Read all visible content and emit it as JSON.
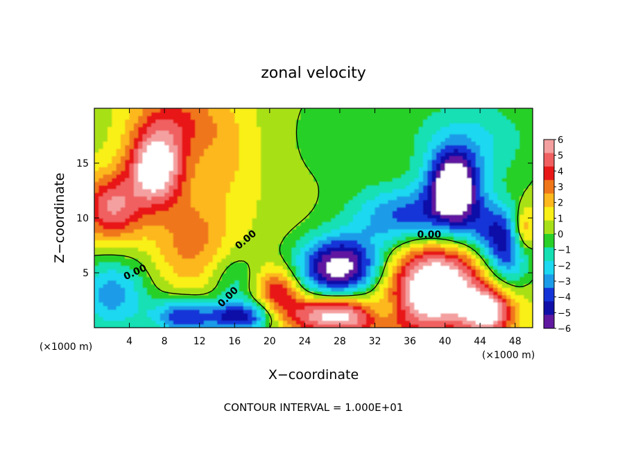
{
  "chart_data": {
    "type": "heatmap",
    "title": "zonal velocity",
    "xlabel": "X−coordinate",
    "ylabel": "Z−coordinate",
    "x_unit_left": "(×1000 m)",
    "x_unit_right": "(×1000 m)",
    "xlim": [
      0,
      50
    ],
    "ylim": [
      0,
      20
    ],
    "x_ticks": [
      4,
      8,
      12,
      16,
      20,
      24,
      28,
      32,
      36,
      40,
      44,
      48
    ],
    "y_ticks": [
      5,
      10,
      15
    ],
    "colorbar": {
      "levels": [
        6,
        5,
        4,
        3,
        2,
        1,
        0,
        -1,
        -2,
        -3,
        -4,
        -5,
        -6
      ],
      "tick_labels": [
        "6",
        "5",
        "4",
        "3",
        "2",
        "1",
        "0",
        "−1",
        "−2",
        "−3",
        "−4",
        "−5",
        "−6"
      ],
      "colors": [
        "#f4a0a0",
        "#f06060",
        "#e81818",
        "#f0761a",
        "#fcb81c",
        "#f8f018",
        "#a8e018",
        "#28d028",
        "#14e0b4",
        "#1cd8f0",
        "#1c9ce8",
        "#1434d8",
        "#1010a8",
        "#6018a0"
      ],
      "overflow_color": "#ffffff"
    },
    "contour_labels": [
      "0.00",
      "0.00",
      "0.00",
      "0.00"
    ],
    "contour_interval_text": "CONTOUR INTERVAL = 1.000E+01",
    "field_features": [
      {
        "x": 7,
        "z": 14.5,
        "value": 7,
        "sx": 2.2,
        "sz": 2.4
      },
      {
        "x": 2,
        "z": 11,
        "value": 5,
        "sx": 2.5,
        "sz": 2.2
      },
      {
        "x": 9,
        "z": 19,
        "value": 3.2,
        "sx": 3.5,
        "sz": 2.5
      },
      {
        "x": 11,
        "z": 8,
        "value": 2.5,
        "sx": 3,
        "sz": 3
      },
      {
        "x": 15,
        "z": 16,
        "value": 1.5,
        "sx": 3,
        "sz": 4
      },
      {
        "x": 41,
        "z": 13,
        "value": -8,
        "sx": 2,
        "sz": 2.2
      },
      {
        "x": 36,
        "z": 10,
        "value": -5,
        "sx": 4.5,
        "sz": 2
      },
      {
        "x": 28,
        "z": 5.5,
        "value": -8,
        "sx": 3.5,
        "sz": 2
      },
      {
        "x": 39,
        "z": 4,
        "value": 8,
        "sx": 4,
        "sz": 3
      },
      {
        "x": 28,
        "z": 1.2,
        "value": 7,
        "sx": 5,
        "sz": 1.2
      },
      {
        "x": 21,
        "z": 3.5,
        "value": 4,
        "sx": 1.8,
        "sz": 1.5
      },
      {
        "x": 10,
        "z": 1,
        "value": -5,
        "sx": 2.5,
        "sz": 1.2
      },
      {
        "x": 17,
        "z": 1,
        "value": -6,
        "sx": 3,
        "sz": 1
      },
      {
        "x": 47,
        "z": 7,
        "value": -5,
        "sx": 2,
        "sz": 2.5
      },
      {
        "x": 49,
        "z": 9,
        "value": 4,
        "sx": 1,
        "sz": 1.5
      },
      {
        "x": 33,
        "z": 1.5,
        "value": -4,
        "sx": 2,
        "sz": 1
      },
      {
        "x": 45,
        "z": 1.5,
        "value": 6,
        "sx": 2,
        "sz": 1.5
      },
      {
        "x": 2,
        "z": 3,
        "value": -4,
        "sx": 3,
        "sz": 2.5
      },
      {
        "x": 28,
        "z": 17,
        "value": -0.8,
        "sx": 5,
        "sz": 4
      },
      {
        "x": 43,
        "z": 17,
        "value": -2.5,
        "sx": 5,
        "sz": 3
      },
      {
        "x": 44,
        "z": 9,
        "value": -3,
        "sx": 3,
        "sz": 2
      },
      {
        "x": 16,
        "z": 4,
        "value": -2,
        "sx": 2,
        "sz": 2
      }
    ]
  }
}
